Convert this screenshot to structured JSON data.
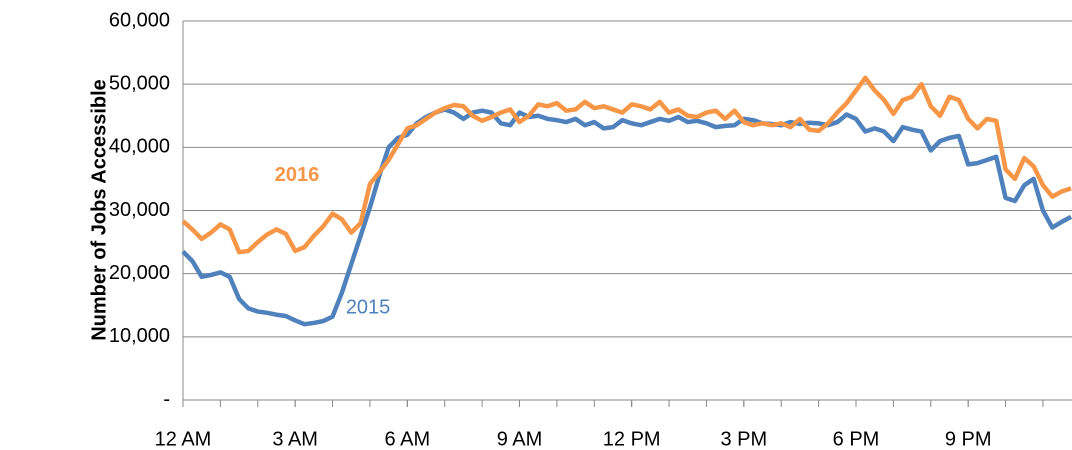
{
  "chart_data": {
    "type": "line",
    "y_label": "Number of Jobs Accessible",
    "x": [
      0,
      0.25,
      0.5,
      0.75,
      1,
      1.25,
      1.5,
      1.75,
      2,
      2.25,
      2.5,
      2.75,
      3,
      3.25,
      3.5,
      3.75,
      4,
      4.25,
      4.5,
      4.75,
      5,
      5.25,
      5.5,
      5.75,
      6,
      6.25,
      6.5,
      6.75,
      7,
      7.25,
      7.5,
      7.75,
      8,
      8.25,
      8.5,
      8.75,
      9,
      9.25,
      9.5,
      9.75,
      10,
      10.25,
      10.5,
      10.75,
      11,
      11.25,
      11.5,
      11.75,
      12,
      12.25,
      12.5,
      12.75,
      13,
      13.25,
      13.5,
      13.75,
      14,
      14.25,
      14.5,
      14.75,
      15,
      15.25,
      15.5,
      15.75,
      16,
      16.25,
      16.5,
      16.75,
      17,
      17.25,
      17.5,
      17.75,
      18,
      18.25,
      18.5,
      18.75,
      19,
      19.25,
      19.5,
      19.75,
      20,
      20.25,
      20.5,
      20.75,
      21,
      21.25,
      21.5,
      21.75,
      22,
      22.25,
      22.5,
      22.75,
      23,
      23.25,
      23.5,
      23.75
    ],
    "series": [
      {
        "name": "2015",
        "color": "#4f81bd",
        "values": [
          23500,
          22000,
          19500,
          19800,
          20200,
          19500,
          16000,
          14500,
          14000,
          13800,
          13500,
          13300,
          12600,
          12000,
          12200,
          12500,
          13200,
          17000,
          21500,
          26000,
          30500,
          35500,
          40000,
          41500,
          42000,
          43800,
          44800,
          45500,
          46000,
          45500,
          44500,
          45500,
          45800,
          45500,
          43800,
          43500,
          45500,
          44800,
          45000,
          44500,
          44300,
          44000,
          44500,
          43500,
          44000,
          43000,
          43200,
          44300,
          43800,
          43500,
          44000,
          44500,
          44200,
          44800,
          44000,
          44200,
          43800,
          43200,
          43400,
          43500,
          44500,
          44300,
          43800,
          43700,
          43500,
          44000,
          43700,
          43900,
          43800,
          43500,
          44000,
          45200,
          44500,
          42500,
          43000,
          42500,
          41000,
          43200,
          42800,
          42500,
          39500,
          41000,
          41500,
          41800,
          37300,
          37500,
          38000,
          38500,
          32000,
          31500,
          34000,
          35000,
          30000,
          27300,
          28200,
          29000
        ]
      },
      {
        "name": "2016",
        "color": "#f79646",
        "values": [
          28300,
          27000,
          25500,
          26500,
          27800,
          27000,
          23400,
          23600,
          25000,
          26200,
          27000,
          26300,
          23600,
          24200,
          26000,
          27500,
          29500,
          28600,
          26500,
          28000,
          34200,
          36000,
          38000,
          40500,
          43000,
          43500,
          44500,
          45500,
          46200,
          46700,
          46500,
          45000,
          44200,
          44800,
          45500,
          46000,
          44000,
          45000,
          46800,
          46500,
          47000,
          45800,
          46000,
          47200,
          46200,
          46500,
          46000,
          45500,
          46800,
          46500,
          46000,
          47200,
          45500,
          46000,
          45000,
          44800,
          45500,
          45800,
          44500,
          45800,
          44000,
          43500,
          43800,
          43500,
          43800,
          43200,
          44500,
          42800,
          42600,
          43800,
          45500,
          47000,
          49000,
          51000,
          49000,
          47500,
          45300,
          47500,
          48000,
          50000,
          46500,
          45000,
          48000,
          47500,
          44500,
          43000,
          44500,
          44200,
          36500,
          35000,
          38300,
          37000,
          34000,
          32200,
          33000,
          33500
        ]
      }
    ],
    "annotations": [
      {
        "text": "2016",
        "series": 1,
        "x": 3.05,
        "y": 35500
      },
      {
        "text": "2015",
        "series": 0,
        "x": 4.95,
        "y": 14500
      }
    ],
    "xlim": [
      0,
      23.75
    ],
    "xticks": [
      {
        "value": 0,
        "label": "12 AM"
      },
      {
        "value": 3,
        "label": "3 AM"
      },
      {
        "value": 6,
        "label": "6 AM"
      },
      {
        "value": 9,
        "label": "9 AM"
      },
      {
        "value": 12,
        "label": "12 PM"
      },
      {
        "value": 15,
        "label": "3 PM"
      },
      {
        "value": 18,
        "label": "6 PM"
      },
      {
        "value": 21,
        "label": "9 PM"
      }
    ],
    "minor_xticks": [
      0,
      1,
      2,
      3,
      4,
      5,
      6,
      7,
      8,
      9,
      10,
      11,
      12,
      13,
      14,
      15,
      16,
      17,
      18,
      19,
      20,
      21,
      22,
      23
    ],
    "ylim": [
      0,
      60000
    ],
    "yticks": [
      {
        "value": 0,
        "label": "-"
      },
      {
        "value": 10000,
        "label": "10,000"
      },
      {
        "value": 20000,
        "label": "20,000"
      },
      {
        "value": 30000,
        "label": "30,000"
      },
      {
        "value": 40000,
        "label": "40,000"
      },
      {
        "value": 50000,
        "label": "50,000"
      },
      {
        "value": 60000,
        "label": "60,000"
      }
    ],
    "grid": true
  }
}
